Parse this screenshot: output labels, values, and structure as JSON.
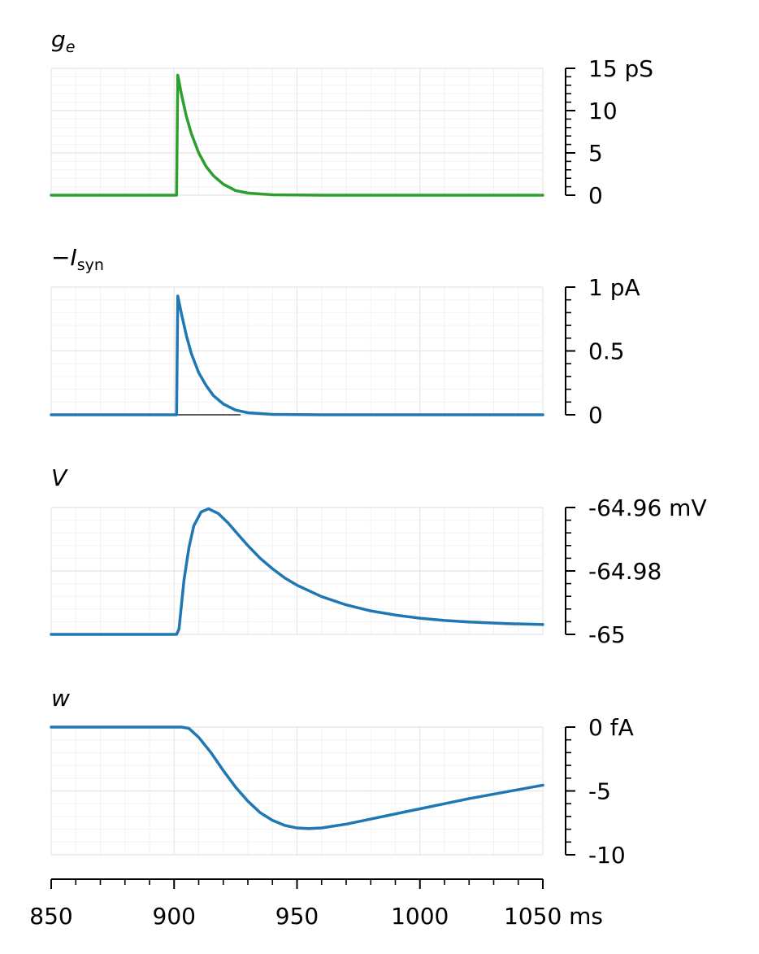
{
  "chart_data": [
    {
      "type": "line",
      "label_main": "g",
      "label_sub": "e",
      "ylim": [
        0,
        15
      ],
      "y_ticks": [
        {
          "value": 0,
          "text": "0"
        },
        {
          "value": 5,
          "text": "5"
        },
        {
          "value": 10,
          "text": "10"
        },
        {
          "value": 15,
          "text": "15 pS"
        }
      ],
      "color": "#2ca02c",
      "series": [
        {
          "x": [
            850,
            901,
            901.5,
            903,
            905,
            907,
            910,
            913,
            916,
            920,
            925,
            930,
            940,
            960,
            1000,
            1050
          ],
          "y": [
            0,
            0,
            14.2,
            11.9,
            9.3,
            7.3,
            5.0,
            3.4,
            2.3,
            1.3,
            0.55,
            0.25,
            0.05,
            0,
            0,
            0
          ]
        }
      ],
      "grid": true
    },
    {
      "type": "line",
      "label_main": "−I",
      "label_sub": "syn",
      "ylim": [
        0,
        1
      ],
      "y_ticks": [
        {
          "value": 0,
          "text": "0"
        },
        {
          "value": 0.5,
          "text": "0.5"
        },
        {
          "value": 1,
          "text": "1 pA"
        }
      ],
      "color": "#1f77b4",
      "series": [
        {
          "x": [
            850,
            901,
            901.5,
            903,
            905,
            907,
            910,
            913,
            916,
            920,
            925,
            930,
            940,
            960,
            1000,
            1050
          ],
          "y": [
            0,
            0,
            0.93,
            0.79,
            0.62,
            0.48,
            0.33,
            0.23,
            0.15,
            0.085,
            0.037,
            0.016,
            0.003,
            0,
            0,
            0
          ]
        }
      ],
      "grid": true
    },
    {
      "type": "line",
      "label_main": "V",
      "label_sub": "",
      "ylim": [
        -65,
        -64.96
      ],
      "y_ticks": [
        {
          "value": -65,
          "text": "-65"
        },
        {
          "value": -64.98,
          "text": "-64.98"
        },
        {
          "value": -64.96,
          "text": "-64.96 mV"
        }
      ],
      "color": "#1f77b4",
      "series": [
        {
          "x": [
            850,
            901,
            902,
            904,
            906,
            908,
            911,
            914,
            918,
            922,
            926,
            930,
            935,
            940,
            945,
            950,
            960,
            970,
            980,
            990,
            1000,
            1010,
            1020,
            1035,
            1050
          ],
          "y": [
            -65,
            -65,
            -64.9983,
            -64.983,
            -64.9728,
            -64.9658,
            -64.9614,
            -64.9604,
            -64.9619,
            -64.9649,
            -64.9685,
            -64.972,
            -64.976,
            -64.9793,
            -64.9822,
            -64.9845,
            -64.9881,
            -64.9907,
            -64.9926,
            -64.9939,
            -64.9949,
            -64.9956,
            -64.9961,
            -64.9966,
            -64.9969
          ]
        }
      ],
      "grid": true
    },
    {
      "type": "line",
      "label_main": "w",
      "label_sub": "",
      "ylim": [
        -10,
        0
      ],
      "y_ticks": [
        {
          "value": -10,
          "text": "-10"
        },
        {
          "value": -5,
          "text": "-5"
        },
        {
          "value": 0,
          "text": "0 fA"
        }
      ],
      "color": "#1f77b4",
      "series": [
        {
          "x": [
            850,
            903,
            906,
            910,
            915,
            920,
            925,
            930,
            935,
            940,
            945,
            950,
            955,
            960,
            970,
            980,
            990,
            1000,
            1010,
            1020,
            1030,
            1040,
            1050
          ],
          "y": [
            0,
            0,
            -0.1,
            -0.8,
            -2.0,
            -3.4,
            -4.7,
            -5.8,
            -6.7,
            -7.3,
            -7.7,
            -7.9,
            -7.95,
            -7.9,
            -7.6,
            -7.2,
            -6.8,
            -6.4,
            -6.0,
            -5.6,
            -5.25,
            -4.9,
            -4.55
          ]
        }
      ],
      "grid": true
    }
  ],
  "x_axis": {
    "xlim": [
      850,
      1050
    ],
    "ticks": [
      {
        "value": 850,
        "text": "850"
      },
      {
        "value": 900,
        "text": "900"
      },
      {
        "value": 950,
        "text": "950"
      },
      {
        "value": 1000,
        "text": "1000"
      },
      {
        "value": 1050,
        "text": "1050 ms"
      }
    ]
  }
}
